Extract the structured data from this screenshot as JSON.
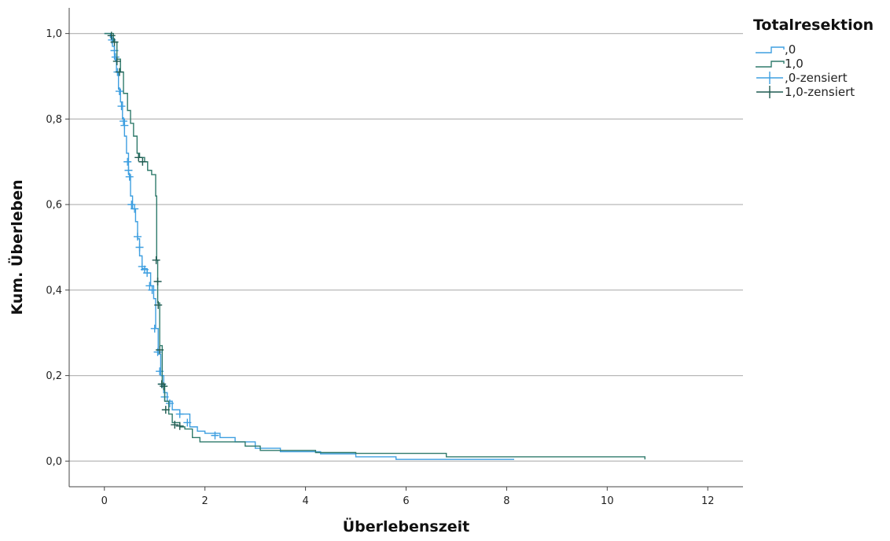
{
  "chart_data": {
    "type": "line",
    "subtype": "kaplan-meier",
    "xlabel": "Überlebenszeit",
    "ylabel": "Kum. Überleben",
    "xlim": [
      -0.7,
      12.7
    ],
    "ylim": [
      -0.06,
      1.06
    ],
    "xticks": [
      0,
      2,
      4,
      6,
      8,
      10,
      12
    ],
    "xtick_labels": [
      "0",
      "2",
      "4",
      "6",
      "8",
      "10",
      "12"
    ],
    "yticks": [
      0.0,
      0.2,
      0.4,
      0.6,
      0.8,
      1.0
    ],
    "ytick_labels": [
      "0,0",
      "0,2",
      "0,4",
      "0,6",
      "0,8",
      "1,0"
    ],
    "grid": "horizontal",
    "legend": {
      "title": "Totalresektion",
      "placement": "top-right",
      "entries": [
        {
          "label": ",0",
          "kind": "line",
          "color": "#3e9fe0"
        },
        {
          "label": "1,0",
          "kind": "line",
          "color": "#2f7a6b"
        },
        {
          "label": ",0-zensiert",
          "kind": "censor",
          "color": "#3e9fe0"
        },
        {
          "label": "1,0-zensiert",
          "kind": "censor",
          "color": "#1f5a50"
        }
      ]
    },
    "series": [
      {
        "name": ",0",
        "color": "#3e9fe0",
        "censor_color": "#3e9fe0",
        "steps": [
          [
            0,
            1.0
          ],
          [
            0.12,
            0.99
          ],
          [
            0.16,
            0.97
          ],
          [
            0.2,
            0.94
          ],
          [
            0.24,
            0.91
          ],
          [
            0.28,
            0.87
          ],
          [
            0.32,
            0.84
          ],
          [
            0.36,
            0.8
          ],
          [
            0.4,
            0.76
          ],
          [
            0.44,
            0.72
          ],
          [
            0.48,
            0.67
          ],
          [
            0.52,
            0.62
          ],
          [
            0.56,
            0.59
          ],
          [
            0.62,
            0.56
          ],
          [
            0.66,
            0.52
          ],
          [
            0.7,
            0.48
          ],
          [
            0.75,
            0.45
          ],
          [
            0.85,
            0.44
          ],
          [
            0.92,
            0.41
          ],
          [
            0.98,
            0.38
          ],
          [
            1.02,
            0.31
          ],
          [
            1.07,
            0.25
          ],
          [
            1.12,
            0.2
          ],
          [
            1.18,
            0.16
          ],
          [
            1.25,
            0.14
          ],
          [
            1.35,
            0.12
          ],
          [
            1.5,
            0.11
          ],
          [
            1.7,
            0.08
          ],
          [
            1.85,
            0.07
          ],
          [
            2.0,
            0.065
          ],
          [
            2.3,
            0.055
          ],
          [
            2.6,
            0.045
          ],
          [
            3.0,
            0.03
          ],
          [
            3.5,
            0.022
          ],
          [
            4.3,
            0.017
          ],
          [
            5.0,
            0.01
          ],
          [
            5.8,
            0.004
          ],
          [
            8.15,
            0.004
          ]
        ],
        "censored": [
          [
            0.15,
            0.985
          ],
          [
            0.2,
            0.96
          ],
          [
            0.22,
            0.945
          ],
          [
            0.26,
            0.91
          ],
          [
            0.3,
            0.865
          ],
          [
            0.34,
            0.83
          ],
          [
            0.38,
            0.795
          ],
          [
            0.4,
            0.785
          ],
          [
            0.46,
            0.7
          ],
          [
            0.48,
            0.68
          ],
          [
            0.5,
            0.665
          ],
          [
            0.54,
            0.6
          ],
          [
            0.6,
            0.59
          ],
          [
            0.66,
            0.525
          ],
          [
            0.7,
            0.5
          ],
          [
            0.75,
            0.455
          ],
          [
            0.8,
            0.448
          ],
          [
            0.85,
            0.44
          ],
          [
            0.9,
            0.41
          ],
          [
            0.95,
            0.4
          ],
          [
            1.0,
            0.31
          ],
          [
            1.06,
            0.255
          ],
          [
            1.1,
            0.21
          ],
          [
            1.15,
            0.18
          ],
          [
            1.2,
            0.15
          ],
          [
            1.3,
            0.135
          ],
          [
            1.5,
            0.11
          ],
          [
            1.65,
            0.09
          ],
          [
            2.2,
            0.06
          ]
        ]
      },
      {
        "name": "1,0",
        "color": "#2f7a6b",
        "censor_color": "#1f5a50",
        "steps": [
          [
            0,
            1.0
          ],
          [
            0.18,
            0.98
          ],
          [
            0.25,
            0.94
          ],
          [
            0.32,
            0.91
          ],
          [
            0.38,
            0.86
          ],
          [
            0.46,
            0.82
          ],
          [
            0.52,
            0.79
          ],
          [
            0.58,
            0.76
          ],
          [
            0.65,
            0.72
          ],
          [
            0.7,
            0.71
          ],
          [
            0.8,
            0.7
          ],
          [
            0.86,
            0.68
          ],
          [
            0.94,
            0.67
          ],
          [
            1.02,
            0.62
          ],
          [
            1.04,
            0.47
          ],
          [
            1.06,
            0.37
          ],
          [
            1.1,
            0.27
          ],
          [
            1.15,
            0.18
          ],
          [
            1.2,
            0.14
          ],
          [
            1.28,
            0.11
          ],
          [
            1.35,
            0.09
          ],
          [
            1.5,
            0.08
          ],
          [
            1.6,
            0.075
          ],
          [
            1.75,
            0.055
          ],
          [
            1.9,
            0.045
          ],
          [
            2.2,
            0.045
          ],
          [
            2.8,
            0.035
          ],
          [
            3.1,
            0.025
          ],
          [
            4.2,
            0.02
          ],
          [
            5.0,
            0.018
          ],
          [
            6.8,
            0.01
          ],
          [
            10.75,
            0.004
          ]
        ],
        "censored": [
          [
            0.14,
            0.995
          ],
          [
            0.2,
            0.98
          ],
          [
            0.25,
            0.935
          ],
          [
            0.3,
            0.91
          ],
          [
            0.68,
            0.71
          ],
          [
            0.76,
            0.7
          ],
          [
            1.03,
            0.47
          ],
          [
            1.06,
            0.42
          ],
          [
            1.07,
            0.365
          ],
          [
            1.1,
            0.26
          ],
          [
            1.14,
            0.18
          ],
          [
            1.18,
            0.175
          ],
          [
            1.22,
            0.12
          ],
          [
            1.4,
            0.085
          ],
          [
            1.5,
            0.082
          ]
        ]
      }
    ]
  }
}
